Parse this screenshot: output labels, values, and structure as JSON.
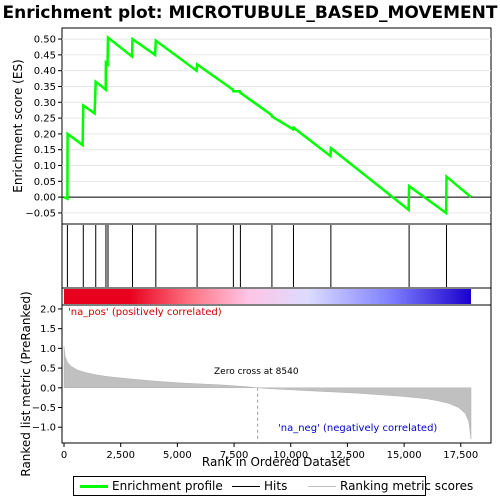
{
  "chart_data": [
    {
      "type": "line",
      "title": "Enrichment plot: MICROTUBULE_BASED_MOVEMENT",
      "xlabel": "",
      "ylabel": "Enrichment score (ES)",
      "xlim": [
        0,
        18500
      ],
      "ylim": [
        -0.085,
        0.535
      ],
      "yticks": [
        "−0.05",
        "0.00",
        "0.05",
        "0.10",
        "0.15",
        "0.20",
        "0.25",
        "0.30",
        "0.35",
        "0.40",
        "0.45",
        "0.50"
      ],
      "ytick_values": [
        -0.05,
        0,
        0.05,
        0.1,
        0.15,
        0.2,
        0.25,
        0.3,
        0.35,
        0.4,
        0.45,
        0.5
      ],
      "grid": true,
      "series": [
        {
          "name": "Enrichment profile",
          "color": "#00ff00",
          "x": [
            0,
            150,
            160,
            820,
            850,
            1350,
            1400,
            1840,
            1850,
            1920,
            1940,
            3000,
            3020,
            4020,
            4050,
            5850,
            5870,
            7450,
            7470,
            7750,
            7780,
            9150,
            9170,
            10100,
            10120,
            11750,
            11770,
            15200,
            15220,
            16850,
            16870,
            17950
          ],
          "y": [
            0.0,
            -0.005,
            0.2,
            0.165,
            0.29,
            0.265,
            0.365,
            0.34,
            0.425,
            0.42,
            0.505,
            0.445,
            0.5,
            0.45,
            0.495,
            0.4,
            0.42,
            0.34,
            0.335,
            0.335,
            0.33,
            0.26,
            0.255,
            0.215,
            0.22,
            0.13,
            0.155,
            -0.04,
            0.035,
            -0.05,
            0.065,
            0.0
          ]
        }
      ]
    },
    {
      "type": "scatter",
      "title": "",
      "series": [
        {
          "name": "Hits",
          "color": "#000000",
          "x": [
            150,
            850,
            1400,
            1850,
            1940,
            3020,
            4050,
            5870,
            7470,
            7780,
            9170,
            10120,
            11770,
            15220,
            16870
          ]
        }
      ]
    },
    {
      "type": "heatmap",
      "title": "",
      "gradient": [
        "#e8001c",
        "#e8001c",
        "#ff7a8a",
        "#ffc4e4",
        "#dcdcff",
        "#8080ff",
        "#1a00cc"
      ]
    },
    {
      "type": "area",
      "title": "",
      "xlabel": "Rank in Ordered Dataset",
      "ylabel": "Ranked list metric (PreRanked)",
      "xlim": [
        0,
        18500
      ],
      "ylim": [
        -1.4,
        2.1
      ],
      "xticks": [
        "0",
        "2,500",
        "5,000",
        "7,500",
        "10,000",
        "12,500",
        "15,000",
        "17,500"
      ],
      "xtick_values": [
        0,
        2500,
        5000,
        7500,
        10000,
        12500,
        15000,
        17500
      ],
      "yticks": [
        "−1.0",
        "−0.5",
        "0.0",
        "0.5",
        "1.0",
        "1.5",
        "2.0"
      ],
      "ytick_values": [
        -1.0,
        -0.5,
        0.0,
        0.5,
        1.0,
        1.5,
        2.0
      ],
      "series": [
        {
          "name": "Ranking metric scores",
          "color": "#c0c0c0",
          "x": [
            0,
            50,
            150,
            300,
            600,
            1000,
            1500,
            2000,
            3000,
            4000,
            5000,
            6000,
            7000,
            8000,
            8540,
            9000,
            10000,
            11000,
            12000,
            13000,
            14000,
            15000,
            16000,
            16500,
            17000,
            17400,
            17700,
            17850,
            17950
          ],
          "y": [
            1.05,
            0.8,
            0.65,
            0.55,
            0.45,
            0.38,
            0.32,
            0.28,
            0.22,
            0.17,
            0.13,
            0.1,
            0.07,
            0.03,
            0.0,
            -0.02,
            -0.05,
            -0.08,
            -0.11,
            -0.14,
            -0.18,
            -0.22,
            -0.28,
            -0.33,
            -0.4,
            -0.5,
            -0.65,
            -0.85,
            -1.3
          ]
        }
      ],
      "annotations": {
        "zero_cross": "Zero cross at 8540",
        "positive": "'na_pos' (positively correlated)",
        "negative": "'na_neg' (negatively correlated)"
      }
    }
  ],
  "legend": {
    "enrichment_label": "Enrichment profile",
    "hits_label": "Hits",
    "ranking_label": "Ranking metric scores",
    "enrichment_color": "#00ff00",
    "hits_color": "#000000",
    "ranking_color": "#c0c0c0"
  }
}
